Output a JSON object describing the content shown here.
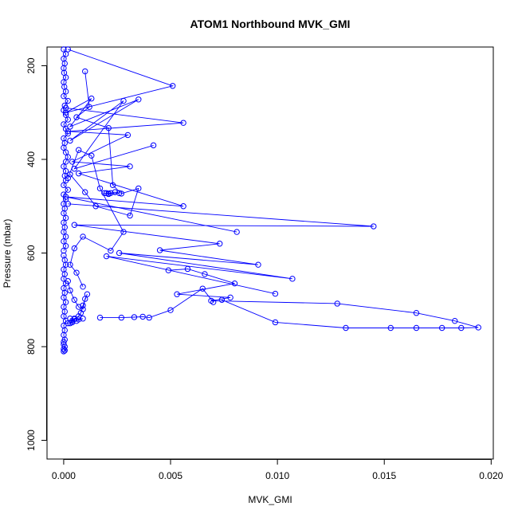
{
  "chart_data": {
    "type": "line",
    "title": "ATOM1 Northbound MVK_GMI",
    "xlabel": "MVK_GMI",
    "ylabel": "Pressure (mbar)",
    "xlim": [
      -0.00078,
      0.0201
    ],
    "ylim": [
      1040,
      160
    ],
    "y_reversed": true,
    "x_ticks": [
      0,
      0.005,
      0.01,
      0.015,
      0.02
    ],
    "x_tick_labels": [
      "0.000",
      "0.005",
      "0.010",
      "0.015",
      "0.020"
    ],
    "y_ticks": [
      200,
      400,
      600,
      800,
      1000
    ],
    "y_tick_labels": [
      "200",
      "400",
      "600",
      "800",
      "1000"
    ],
    "grid": false,
    "legend": "none",
    "series_color": "#0000ff",
    "marker": "open-circle",
    "series": [
      {
        "x": [
          0.0,
          0.0001,
          0.0,
          5e-05,
          0.0,
          2e-05,
          0.0001,
          0.0,
          3e-05,
          0.0001,
          0.0,
          0.0002,
          5e-05,
          0.0,
          0.0001,
          0.0002,
          0.0,
          0.0001,
          0.0002,
          0.0,
          5e-05,
          0.0,
          0.0001,
          0.0002,
          0.0001,
          0.0,
          0.0001,
          5e-05,
          0.0001,
          0.0,
          0.0002,
          0.0,
          0.0001,
          0.0,
          5e-05,
          0.0,
          0.0001,
          0.0,
          5e-05,
          0.0,
          0.0001,
          0.0,
          0.0001,
          0.0
        ],
        "y": [
          165,
          175,
          185,
          195,
          205,
          215,
          225,
          235,
          245,
          255,
          265,
          275,
          285,
          295,
          305,
          315,
          325,
          335,
          345,
          355,
          365,
          375,
          385,
          395,
          405,
          415,
          425,
          435,
          445,
          455,
          465,
          475,
          485,
          495,
          505,
          515,
          525,
          535,
          545,
          555,
          565,
          575,
          585,
          595
        ]
      },
      {
        "x": [
          0.0,
          5e-05,
          0.0001,
          0.0,
          5e-05,
          0.0,
          0.0001,
          0.0,
          5e-05,
          0.0,
          0.0001,
          0.0,
          5e-05,
          0.0,
          0.0001,
          0.0,
          5e-05,
          0.0,
          5e-05,
          0.0,
          0.0,
          5e-05,
          0.0,
          5e-05,
          0.0
        ],
        "y": [
          605,
          615,
          625,
          635,
          645,
          655,
          665,
          675,
          685,
          695,
          705,
          715,
          725,
          735,
          745,
          755,
          765,
          775,
          785,
          790,
          795,
          800,
          805,
          808,
          810
        ]
      },
      {
        "x": [
          0.0002,
          0.0051,
          0.0001,
          0.0013,
          0.0003,
          0.0035,
          0.0003,
          0.0028,
          0.0005,
          0.0042
        ],
        "y": [
          165,
          243,
          300,
          270,
          330,
          272,
          360,
          275,
          420,
          370
        ]
      },
      {
        "x": [
          0.0001,
          0.0056,
          0.0002,
          0.003,
          0.0004,
          0.0031,
          0.0007,
          0.0056,
          0.0001,
          0.0081
        ],
        "y": [
          290,
          322,
          340,
          348,
          405,
          415,
          430,
          500,
          480,
          555
        ]
      },
      {
        "x": [
          0.0002,
          0.0145,
          0.0005,
          0.0073,
          0.0045,
          0.0091,
          0.0026,
          0.0107,
          0.002,
          0.0099
        ],
        "y": [
          495,
          543,
          540,
          580,
          594,
          625,
          600,
          655,
          607,
          687
        ]
      },
      {
        "x": [
          0.0049,
          0.0058,
          0.0066,
          0.008,
          0.0053,
          0.0078,
          0.0069,
          0.0128,
          0.0165,
          0.0183,
          0.0194,
          0.0186,
          0.0177,
          0.0165,
          0.0153,
          0.0132,
          0.0099,
          0.0074
        ],
        "y": [
          637,
          634,
          645,
          665,
          688,
          695,
          702,
          708,
          728,
          745,
          759,
          760,
          760,
          760,
          760,
          760,
          748,
          700
        ]
      },
      {
        "x": [
          0.0017,
          0.0027,
          0.0033,
          0.0037,
          0.004,
          0.005,
          0.0065,
          0.007
        ],
        "y": [
          738,
          738,
          737,
          736,
          738,
          722,
          676,
          705
        ]
      },
      {
        "x": [
          0.001,
          0.0012,
          0.0006,
          0.0021,
          0.0023,
          0.0027,
          0.0035,
          0.0031,
          0.0015,
          0.001,
          0.0003
        ],
        "y": [
          212,
          288,
          310,
          333,
          455,
          473,
          462,
          520,
          500,
          470,
          432
        ]
      },
      {
        "x": [
          0.0002,
          0.0007,
          0.0013,
          0.0017,
          0.0028,
          0.0022,
          0.0009,
          0.0005,
          0.0003,
          0.0006,
          0.0009
        ],
        "y": [
          440,
          380,
          392,
          462,
          555,
          595,
          565,
          590,
          625,
          642,
          672
        ]
      },
      {
        "x": [
          0.0002,
          0.0003,
          0.0005,
          0.0007,
          0.0009,
          0.001,
          0.0011,
          0.0009,
          0.0008,
          0.0007,
          0.0005,
          0.0004,
          0.0003
        ],
        "y": [
          660,
          680,
          700,
          715,
          720,
          698,
          688,
          712,
          728,
          735,
          740,
          745,
          750
        ]
      },
      {
        "x": [
          0.0003,
          0.0005,
          0.0007,
          0.0009,
          0.0006,
          0.0004,
          0.0002
        ],
        "y": [
          740,
          741,
          742,
          740,
          745,
          748,
          750
        ]
      },
      {
        "x": [
          0.002,
          0.0021,
          0.0022,
          0.0024,
          0.0026,
          0.0021,
          0.0019
        ],
        "y": [
          472,
          473,
          472,
          470,
          472,
          474,
          472
        ]
      }
    ]
  }
}
